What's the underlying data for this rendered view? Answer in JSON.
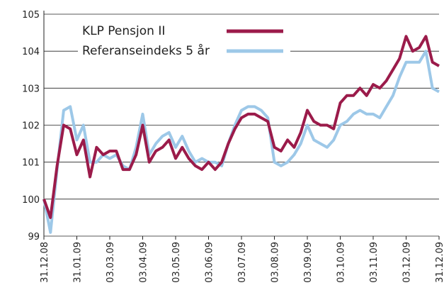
{
  "chart_data": {
    "type": "line",
    "categories": [
      "31.12.08",
      null,
      null,
      null,
      null,
      "31.01.09",
      null,
      null,
      null,
      null,
      "03.03.09",
      null,
      null,
      null,
      null,
      "03.04.09",
      null,
      null,
      null,
      null,
      "03.05.09",
      null,
      null,
      null,
      null,
      "03.06.09",
      null,
      null,
      null,
      null,
      "03.07.09",
      null,
      null,
      null,
      null,
      "03.08.09",
      null,
      null,
      null,
      null,
      "03.09.09",
      null,
      null,
      null,
      null,
      "03.10.09",
      null,
      null,
      null,
      null,
      "03.11.09",
      null,
      null,
      null,
      null,
      "03.12.09",
      null,
      null,
      null,
      null,
      "31.12.09"
    ],
    "series": [
      {
        "name": "KLP Pensjon II",
        "color": "#9b1b4a",
        "values": [
          100.0,
          99.5,
          100.9,
          102.0,
          101.9,
          101.2,
          101.6,
          100.6,
          101.4,
          101.2,
          101.3,
          101.3,
          100.8,
          100.8,
          101.2,
          102.0,
          101.0,
          101.3,
          101.4,
          101.6,
          101.1,
          101.4,
          101.1,
          100.9,
          100.8,
          101.0,
          100.8,
          101.0,
          101.5,
          101.9,
          102.2,
          102.3,
          102.3,
          102.2,
          102.1,
          101.4,
          101.3,
          101.6,
          101.4,
          101.8,
          102.4,
          102.1,
          102.0,
          102.0,
          101.9,
          102.6,
          102.8,
          102.8,
          103.0,
          102.8,
          103.1,
          103.0,
          103.2,
          103.5,
          103.8,
          104.4,
          104.0,
          104.1,
          104.4,
          103.7,
          103.6
        ]
      },
      {
        "name": "Referanseindeks 5 år",
        "color": "#9dc8e8",
        "values": [
          100.0,
          99.1,
          100.8,
          102.4,
          102.5,
          101.6,
          102.0,
          101.0,
          101.0,
          101.2,
          101.1,
          101.2,
          100.9,
          100.8,
          101.4,
          102.3,
          101.2,
          101.5,
          101.7,
          101.8,
          101.4,
          101.7,
          101.3,
          101.0,
          101.1,
          101.0,
          101.0,
          100.9,
          101.5,
          102.0,
          102.4,
          102.5,
          102.5,
          102.4,
          102.2,
          101.0,
          100.9,
          101.0,
          101.2,
          101.5,
          102.0,
          101.6,
          101.5,
          101.4,
          101.6,
          102.0,
          102.1,
          102.3,
          102.4,
          102.3,
          102.3,
          102.2,
          102.5,
          102.8,
          103.3,
          103.7,
          103.7,
          103.7,
          104.0,
          103.0,
          102.9
        ]
      }
    ],
    "ylim": [
      99,
      105
    ],
    "yticks": [
      99,
      100,
      101,
      102,
      103,
      104,
      105
    ],
    "grid": true
  }
}
